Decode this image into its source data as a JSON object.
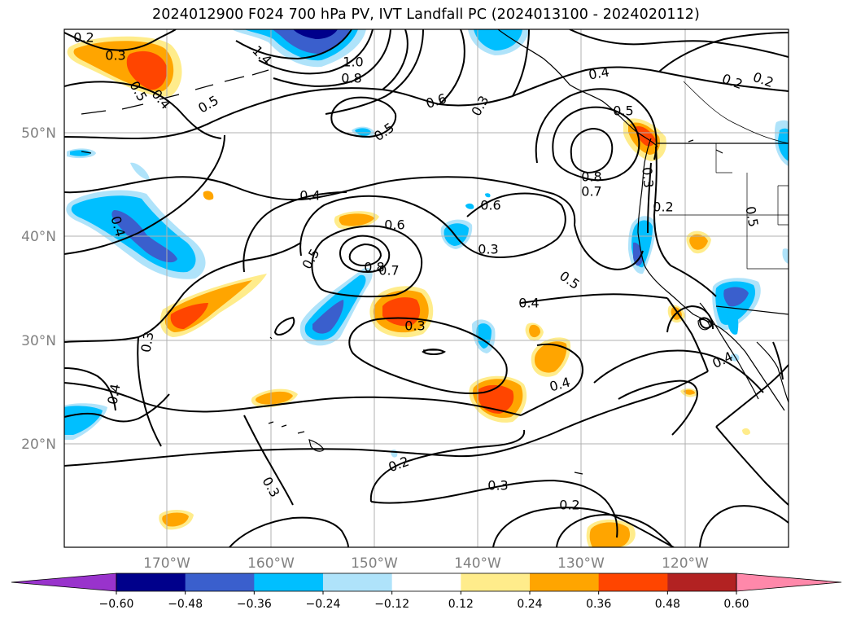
{
  "title": "2024012900 F024 700 hPa PV, IVT Landfall PC (2024013100 - 2024020112)",
  "map": {
    "lat_labels": [
      "50°N",
      "40°N",
      "30°N",
      "20°N"
    ],
    "lon_labels": [
      "170°W",
      "160°W",
      "150°W",
      "140°W",
      "130°W",
      "120°W"
    ],
    "contour_labels": [
      "0.2",
      "0.3",
      "0.5",
      "0.4",
      "0.5",
      "1.4",
      "1.0",
      "0.8",
      "0.6",
      "0.3",
      "0.5",
      "0.6",
      "0.4",
      "0.5",
      "0.8",
      "0.7",
      "0.3",
      "0.2",
      "0.5",
      "0.4",
      "0.5",
      "0.4",
      "0.6",
      "0.8",
      "0.7",
      "0.3",
      "0.5",
      "0.4",
      "0.3",
      "0.3",
      "0.4",
      "0.4",
      "0.4",
      "0.2",
      "0.2",
      "0.2",
      "0.3",
      "0.3",
      "0.2"
    ]
  },
  "colorbar": {
    "ticks": [
      "−0.60",
      "−0.48",
      "−0.36",
      "−0.24",
      "−0.12",
      "0.12",
      "0.24",
      "0.36",
      "0.48",
      "0.60"
    ],
    "colors": [
      "#9933cc",
      "#00008b",
      "#3a5fcd",
      "#00bfff",
      "#afe3fa",
      "#ffffff",
      "#ffec8b",
      "#ffa500",
      "#ff4500",
      "#b22222",
      "#ff88aa"
    ]
  }
}
